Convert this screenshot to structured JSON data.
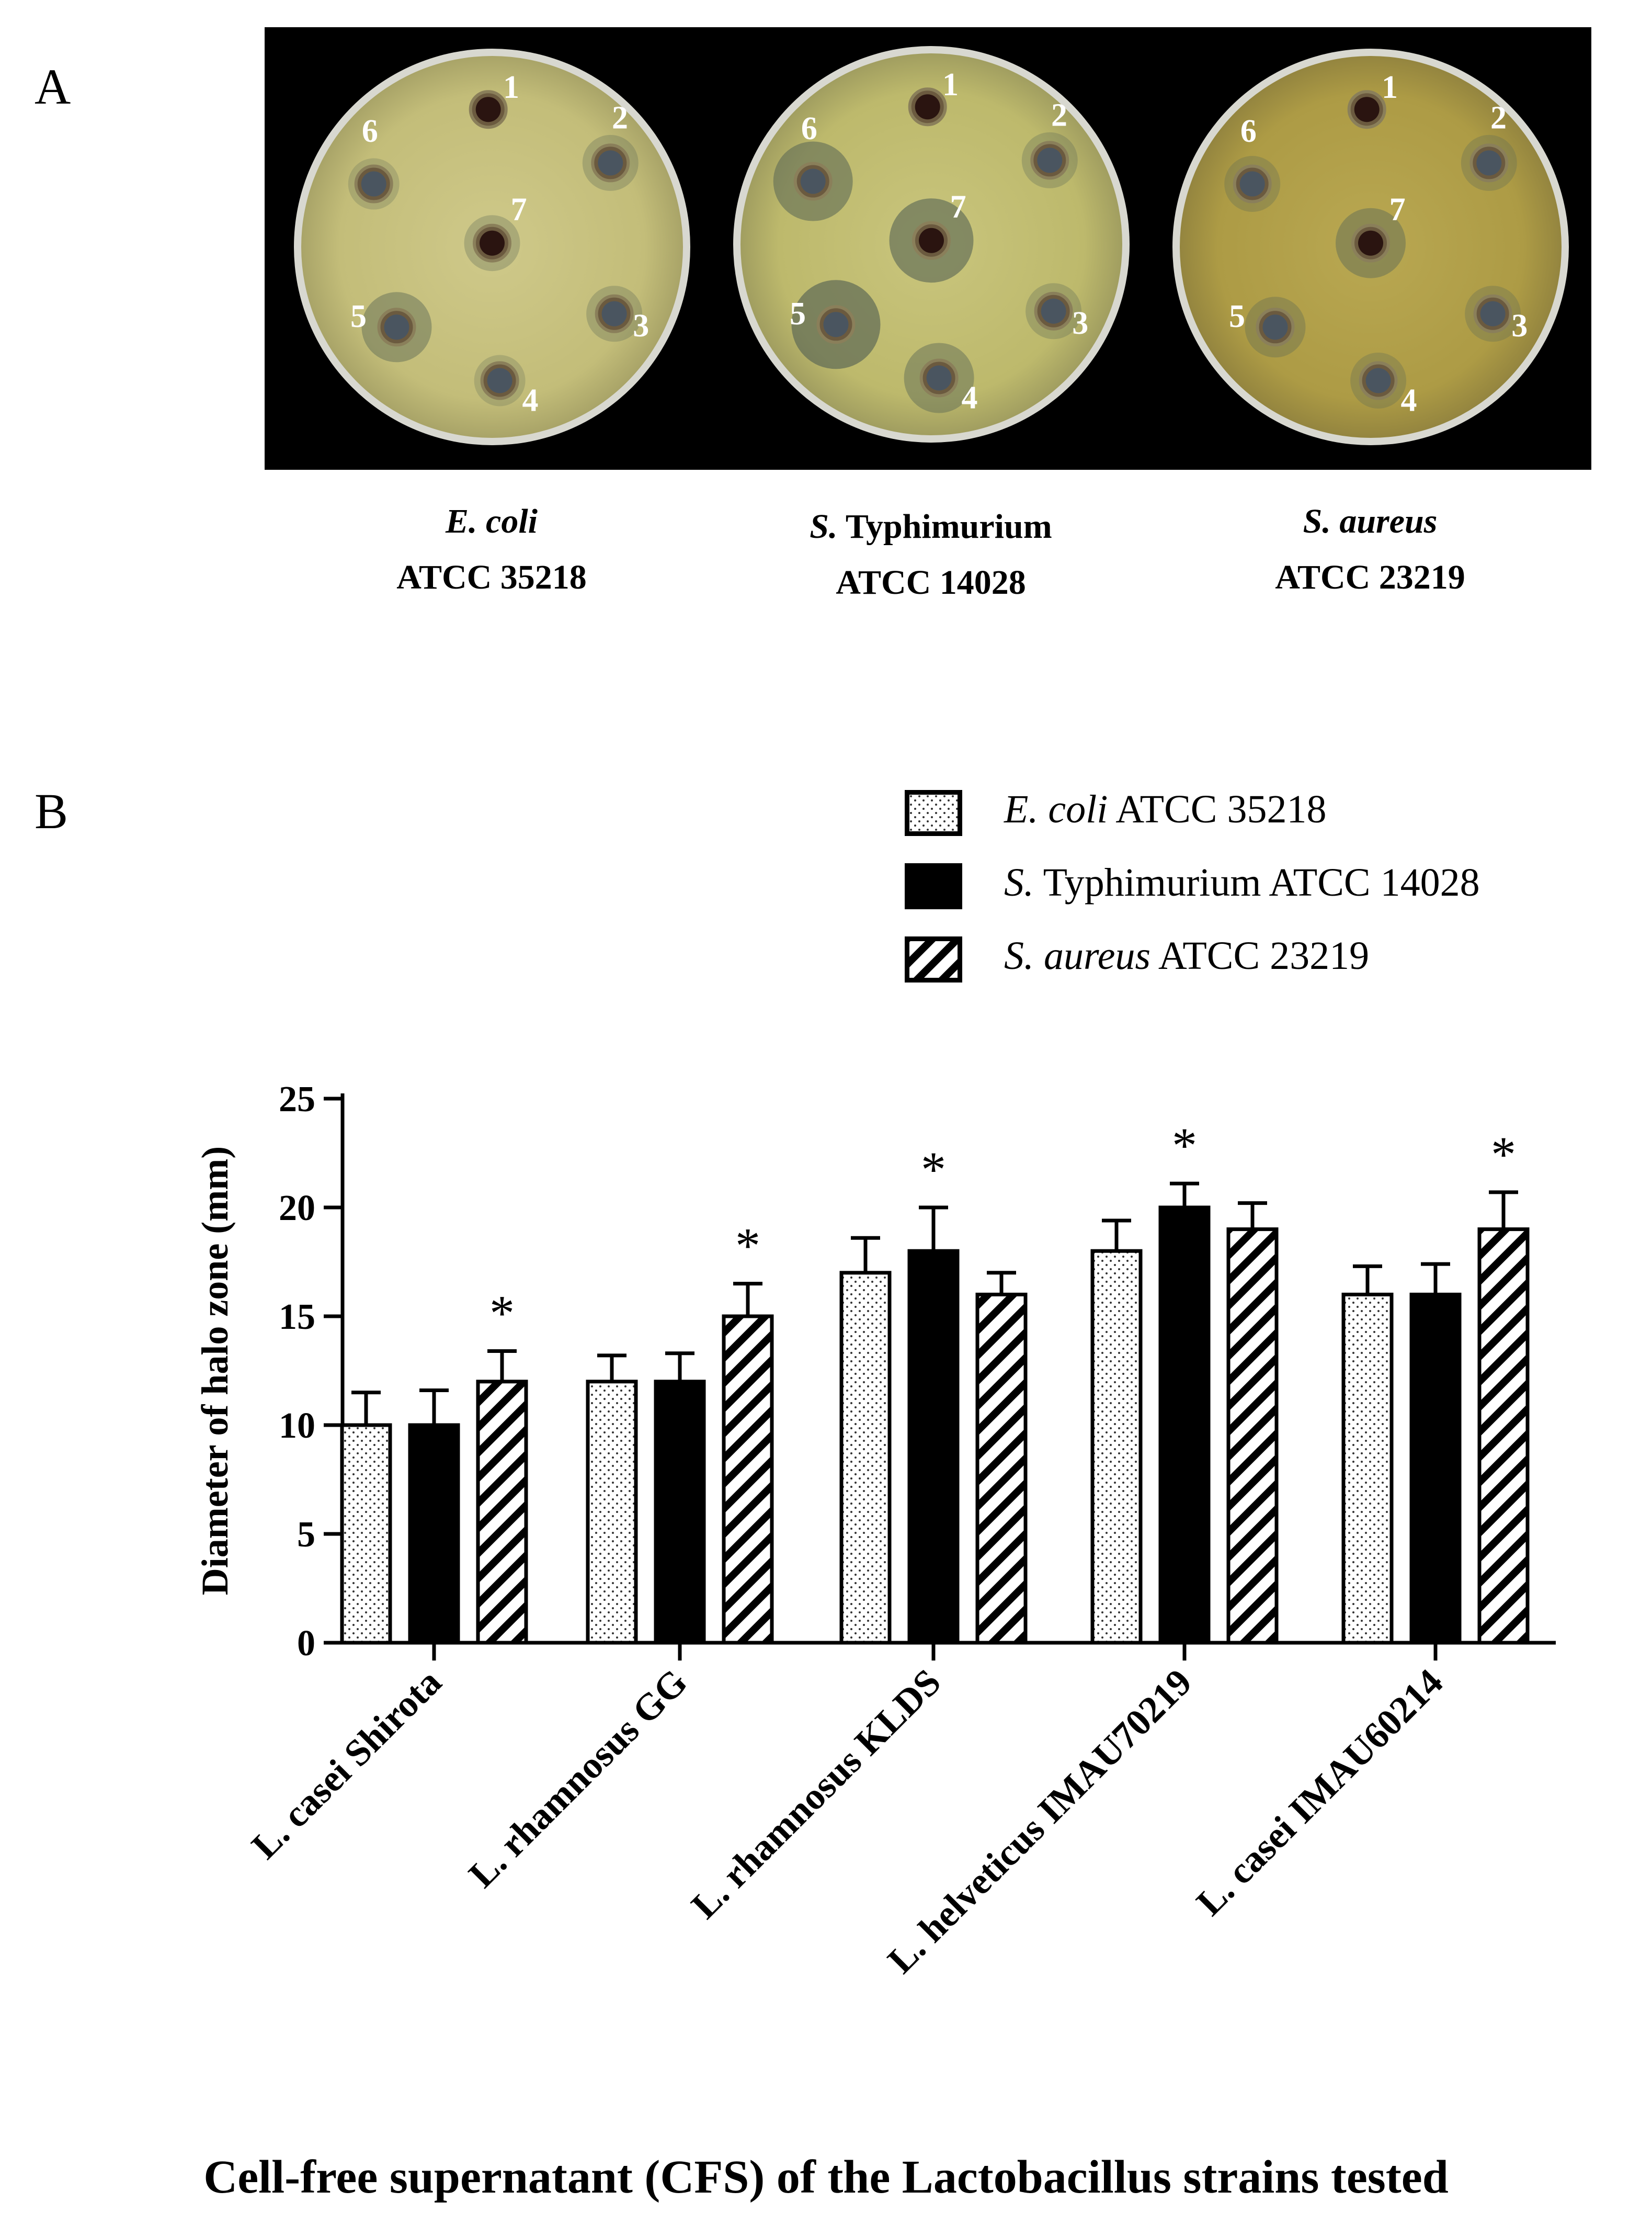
{
  "panel_a": {
    "label": "A",
    "plates": [
      {
        "organism_prefix": "E. coli",
        "organism_rest": "",
        "strain": "ATCC 35218",
        "wells": [
          {
            "n": "1",
            "inhib": 0,
            "dark": true
          },
          {
            "n": "2",
            "inhib": 0.3
          },
          {
            "n": "3",
            "inhib": 0.3
          },
          {
            "n": "4",
            "inhib": 0.2
          },
          {
            "n": "5",
            "inhib": 0.6
          },
          {
            "n": "6",
            "inhib": 0.2
          },
          {
            "n": "7",
            "inhib": 0.3,
            "dark": true
          }
        ]
      },
      {
        "organism_prefix": "S.",
        "organism_rest": " Typhimurium",
        "strain": "ATCC 14028",
        "wells": [
          {
            "n": "1",
            "inhib": 0,
            "dark": true
          },
          {
            "n": "2",
            "inhib": 0.3
          },
          {
            "n": "3",
            "inhib": 0.3
          },
          {
            "n": "4",
            "inhib": 0.6
          },
          {
            "n": "5",
            "inhib": 1.0
          },
          {
            "n": "6",
            "inhib": 0.8
          },
          {
            "n": "7",
            "inhib": 0.9,
            "dark": true
          }
        ]
      },
      {
        "organism_prefix": "S. aureus",
        "organism_rest": "",
        "strain": "ATCC 23219",
        "wells": [
          {
            "n": "1",
            "inhib": 0,
            "dark": true
          },
          {
            "n": "2",
            "inhib": 0.3
          },
          {
            "n": "3",
            "inhib": 0.3
          },
          {
            "n": "4",
            "inhib": 0.3
          },
          {
            "n": "5",
            "inhib": 0.4
          },
          {
            "n": "6",
            "inhib": 0.3
          },
          {
            "n": "7",
            "inhib": 0.6,
            "dark": true
          }
        ]
      }
    ]
  },
  "panel_b": {
    "label": "B"
  },
  "legend": [
    {
      "italic": "E. coli",
      "rest": " ATCC 35218",
      "pattern": "dots"
    },
    {
      "italic": "S.",
      "rest": " Typhimurium ATCC 14028",
      "pattern": "solid"
    },
    {
      "italic": "S. aureus",
      "rest": " ATCC 23219",
      "pattern": "hatch"
    }
  ],
  "chart_data": {
    "type": "bar",
    "categories": [
      "L. casei Shirota",
      "L. rhamnosus GG",
      "L. rhamnosus KLDS",
      "L. helveticus IMAU70219",
      "L. casei IMAU60214"
    ],
    "series": [
      {
        "name": "E. coli ATCC 35218",
        "values": [
          10,
          12,
          17,
          18,
          16
        ],
        "errors": [
          1.5,
          1.2,
          1.6,
          1.4,
          1.3
        ]
      },
      {
        "name": "S. Typhimurium ATCC 14028",
        "values": [
          10,
          12,
          18,
          20,
          16
        ],
        "errors": [
          1.6,
          1.3,
          2.0,
          1.1,
          1.4
        ]
      },
      {
        "name": "S. aureus ATCC 23219",
        "values": [
          12,
          15,
          16,
          19,
          19
        ],
        "errors": [
          1.4,
          1.5,
          1.0,
          1.2,
          1.7
        ]
      }
    ],
    "significance": [
      {
        "category": 0,
        "series": 2,
        "label": "*"
      },
      {
        "category": 1,
        "series": 2,
        "label": "*"
      },
      {
        "category": 2,
        "series": 1,
        "label": "*"
      },
      {
        "category": 3,
        "series": 1,
        "label": "*"
      },
      {
        "category": 4,
        "series": 2,
        "label": "*"
      }
    ],
    "ylabel": "Diameter of halo zone (mm)",
    "xlabel": "Cell-free supernatant (CFS) of the Lactobacillus strains tested",
    "ylim": [
      0,
      25
    ],
    "yticks": [
      0,
      5,
      10,
      15,
      20,
      25
    ],
    "grid": false,
    "legend_position": "top-right"
  }
}
